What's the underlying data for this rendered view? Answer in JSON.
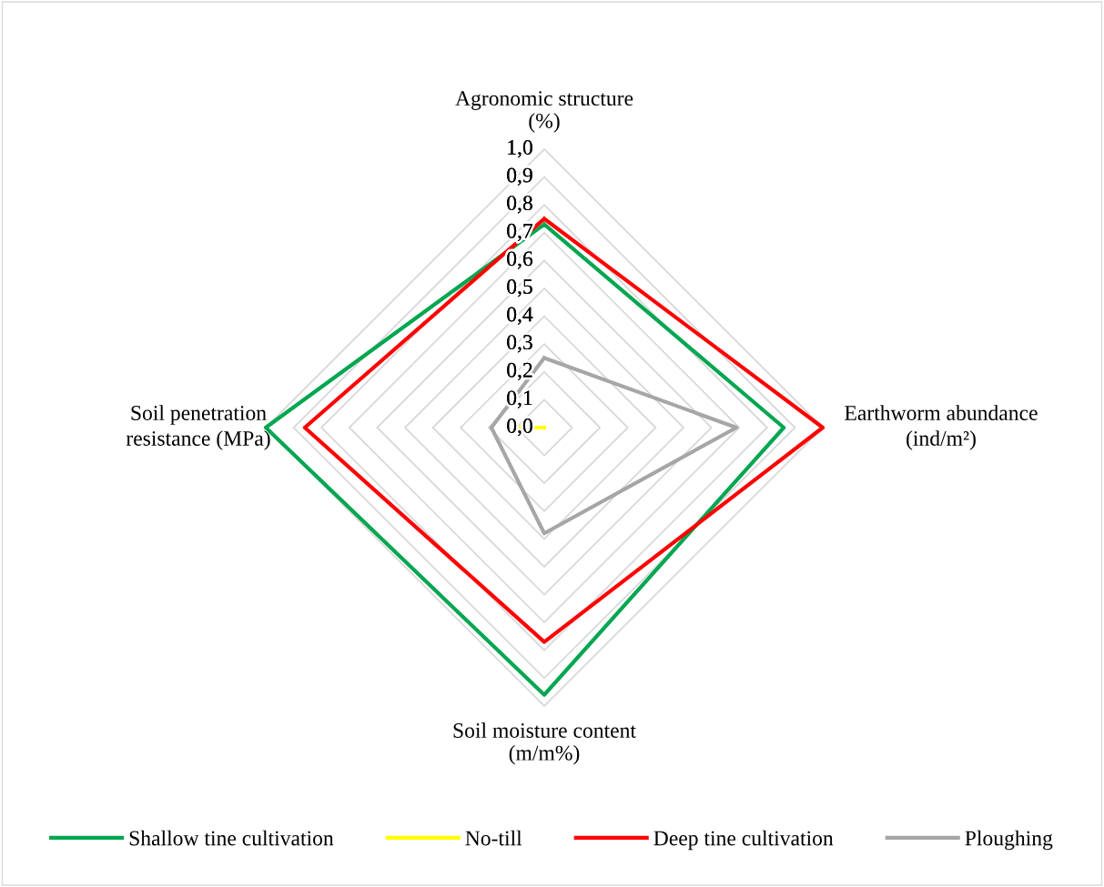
{
  "chart_data": {
    "type": "radar",
    "categories": [
      "Agronomic structure\n(%)",
      "Earthworm abundance\n(ind/m²)",
      "Soil moisture content\n(m/m%)",
      "Soil penetration\nresistance (MPa)"
    ],
    "series": [
      {
        "name": "Shallow tine cultivation",
        "color": "#00a650",
        "values": [
          0.73,
          0.86,
          0.96,
          1.0
        ]
      },
      {
        "name": "No-till",
        "color": "#ffff00",
        "values": [
          0,
          0,
          0,
          0.13
        ]
      },
      {
        "name": "Deep tine cultivation",
        "color": "#ff0000",
        "values": [
          0.75,
          1.0,
          0.77,
          0.86
        ]
      },
      {
        "name": "Ploughing",
        "color": "#a6a6a6",
        "values": [
          0.25,
          0.69,
          0.38,
          0.19
        ]
      }
    ],
    "ylim": [
      0,
      1.0
    ],
    "yticks": [
      {
        "value": 0,
        "label": "0,0"
      },
      {
        "value": 0.1,
        "label": "0,1"
      },
      {
        "value": 0.2,
        "label": "0,2"
      },
      {
        "value": 0.3,
        "label": "0,3"
      },
      {
        "value": 0.4,
        "label": "0,4"
      },
      {
        "value": 0.5,
        "label": "0,5"
      },
      {
        "value": 0.6,
        "label": "0,6"
      },
      {
        "value": 0.7,
        "label": "0,7"
      },
      {
        "value": 0.8,
        "label": "0,8"
      },
      {
        "value": 0.9,
        "label": "0,9"
      },
      {
        "value": 1.0,
        "label": "1,0"
      }
    ],
    "grid": true,
    "legend": "bottom",
    "marker": "none",
    "line_style": "solid"
  }
}
